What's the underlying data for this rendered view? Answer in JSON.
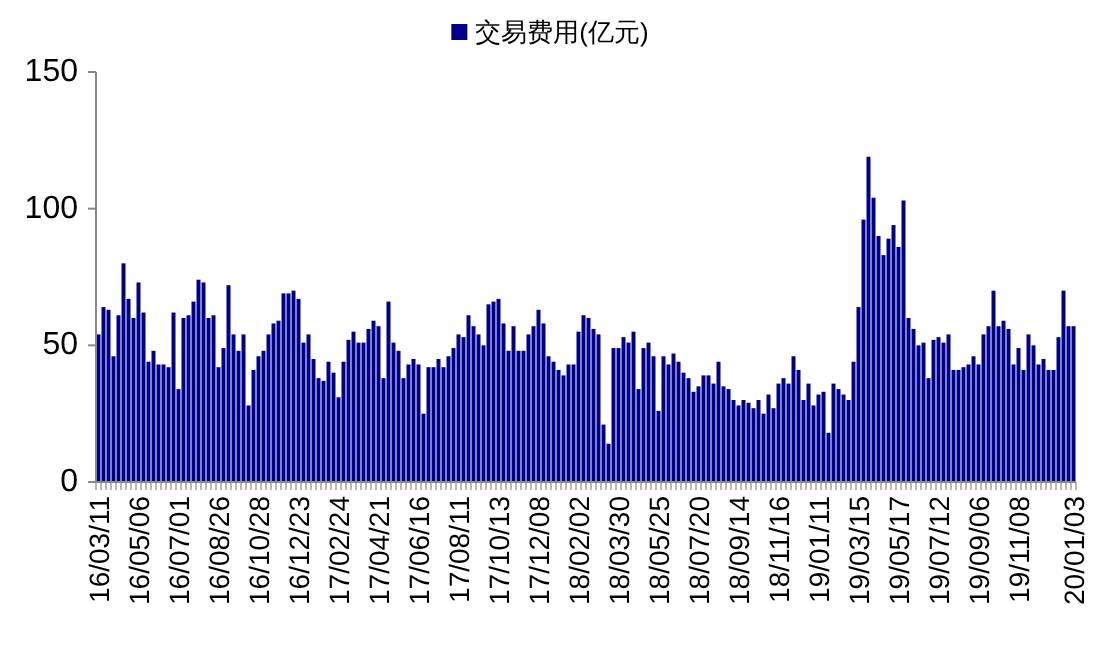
{
  "chart_data": {
    "type": "bar",
    "legend": "top",
    "ylim": [
      0,
      150
    ],
    "yticks": [
      0,
      50,
      100,
      150
    ],
    "categories": [
      "16/03/11",
      null,
      null,
      null,
      null,
      null,
      null,
      null,
      "16/05/06",
      null,
      null,
      null,
      null,
      null,
      null,
      null,
      "16/07/01",
      null,
      null,
      null,
      null,
      null,
      null,
      null,
      "16/08/26",
      null,
      null,
      null,
      null,
      null,
      null,
      null,
      "16/10/28",
      null,
      null,
      null,
      null,
      null,
      null,
      null,
      "16/12/23",
      null,
      null,
      null,
      null,
      null,
      null,
      null,
      "17/02/24",
      null,
      null,
      null,
      null,
      null,
      null,
      null,
      "17/04/21",
      null,
      null,
      null,
      null,
      null,
      null,
      null,
      "17/06/16",
      null,
      null,
      null,
      null,
      null,
      null,
      null,
      "17/08/11",
      null,
      null,
      null,
      null,
      null,
      null,
      null,
      "17/10/13",
      null,
      null,
      null,
      null,
      null,
      null,
      null,
      "17/12/08",
      null,
      null,
      null,
      null,
      null,
      null,
      null,
      "18/02/02",
      null,
      null,
      null,
      null,
      null,
      null,
      null,
      "18/03/30",
      null,
      null,
      null,
      null,
      null,
      null,
      null,
      "18/05/25",
      null,
      null,
      null,
      null,
      null,
      null,
      null,
      "18/07/20",
      null,
      null,
      null,
      null,
      null,
      null,
      null,
      "18/09/14",
      null,
      null,
      null,
      null,
      null,
      null,
      null,
      "18/11/16",
      null,
      null,
      null,
      null,
      null,
      null,
      null,
      "19/01/11",
      null,
      null,
      null,
      null,
      null,
      null,
      null,
      "19/03/15",
      null,
      null,
      null,
      null,
      null,
      null,
      null,
      "19/05/17",
      null,
      null,
      null,
      null,
      null,
      null,
      null,
      "19/07/12",
      null,
      null,
      null,
      null,
      null,
      null,
      null,
      "19/09/06",
      null,
      null,
      null,
      null,
      null,
      null,
      null,
      "19/11/08",
      null,
      null,
      null,
      null,
      null,
      null,
      null,
      null,
      null,
      null,
      "20/01/03"
    ],
    "series": [
      {
        "name": "交易费用(亿元)",
        "color": "#00008b",
        "values": [
          54,
          64,
          63,
          46,
          61,
          80,
          67,
          60,
          73,
          62,
          44,
          48,
          43,
          43,
          42,
          62,
          34,
          60,
          61,
          66,
          74,
          73,
          60,
          61,
          42,
          49,
          72,
          54,
          48,
          54,
          28,
          41,
          46,
          48,
          54,
          58,
          59,
          69,
          69,
          70,
          67,
          51,
          54,
          45,
          38,
          37,
          44,
          40,
          31,
          44,
          52,
          55,
          51,
          51,
          56,
          59,
          57,
          38,
          66,
          51,
          48,
          38,
          43,
          45,
          43,
          25,
          42,
          42,
          45,
          42,
          46,
          49,
          54,
          53,
          61,
          57,
          54,
          50,
          65,
          66,
          67,
          58,
          48,
          57,
          48,
          48,
          54,
          57,
          63,
          58,
          46,
          44,
          41,
          39,
          43,
          43,
          55,
          61,
          60,
          56,
          54,
          21,
          14,
          49,
          49,
          53,
          51,
          55,
          34,
          49,
          51,
          46,
          26,
          46,
          43,
          47,
          44,
          40,
          38,
          33,
          35,
          39,
          39,
          36,
          44,
          35,
          34,
          30,
          28,
          30,
          29,
          27,
          30,
          25,
          32,
          27,
          36,
          38,
          36,
          46,
          41,
          30,
          36,
          28,
          32,
          33,
          18,
          36,
          34,
          32,
          30,
          44,
          64,
          96,
          119,
          104,
          90,
          83,
          89,
          94,
          86,
          103,
          60,
          56,
          50,
          51,
          38,
          52,
          53,
          51,
          54,
          41,
          41,
          42,
          43,
          46,
          43,
          54,
          57,
          70,
          57,
          59,
          56,
          43,
          49,
          41,
          54,
          50,
          43,
          45,
          41,
          41,
          53,
          70,
          57,
          57
        ]
      }
    ]
  }
}
